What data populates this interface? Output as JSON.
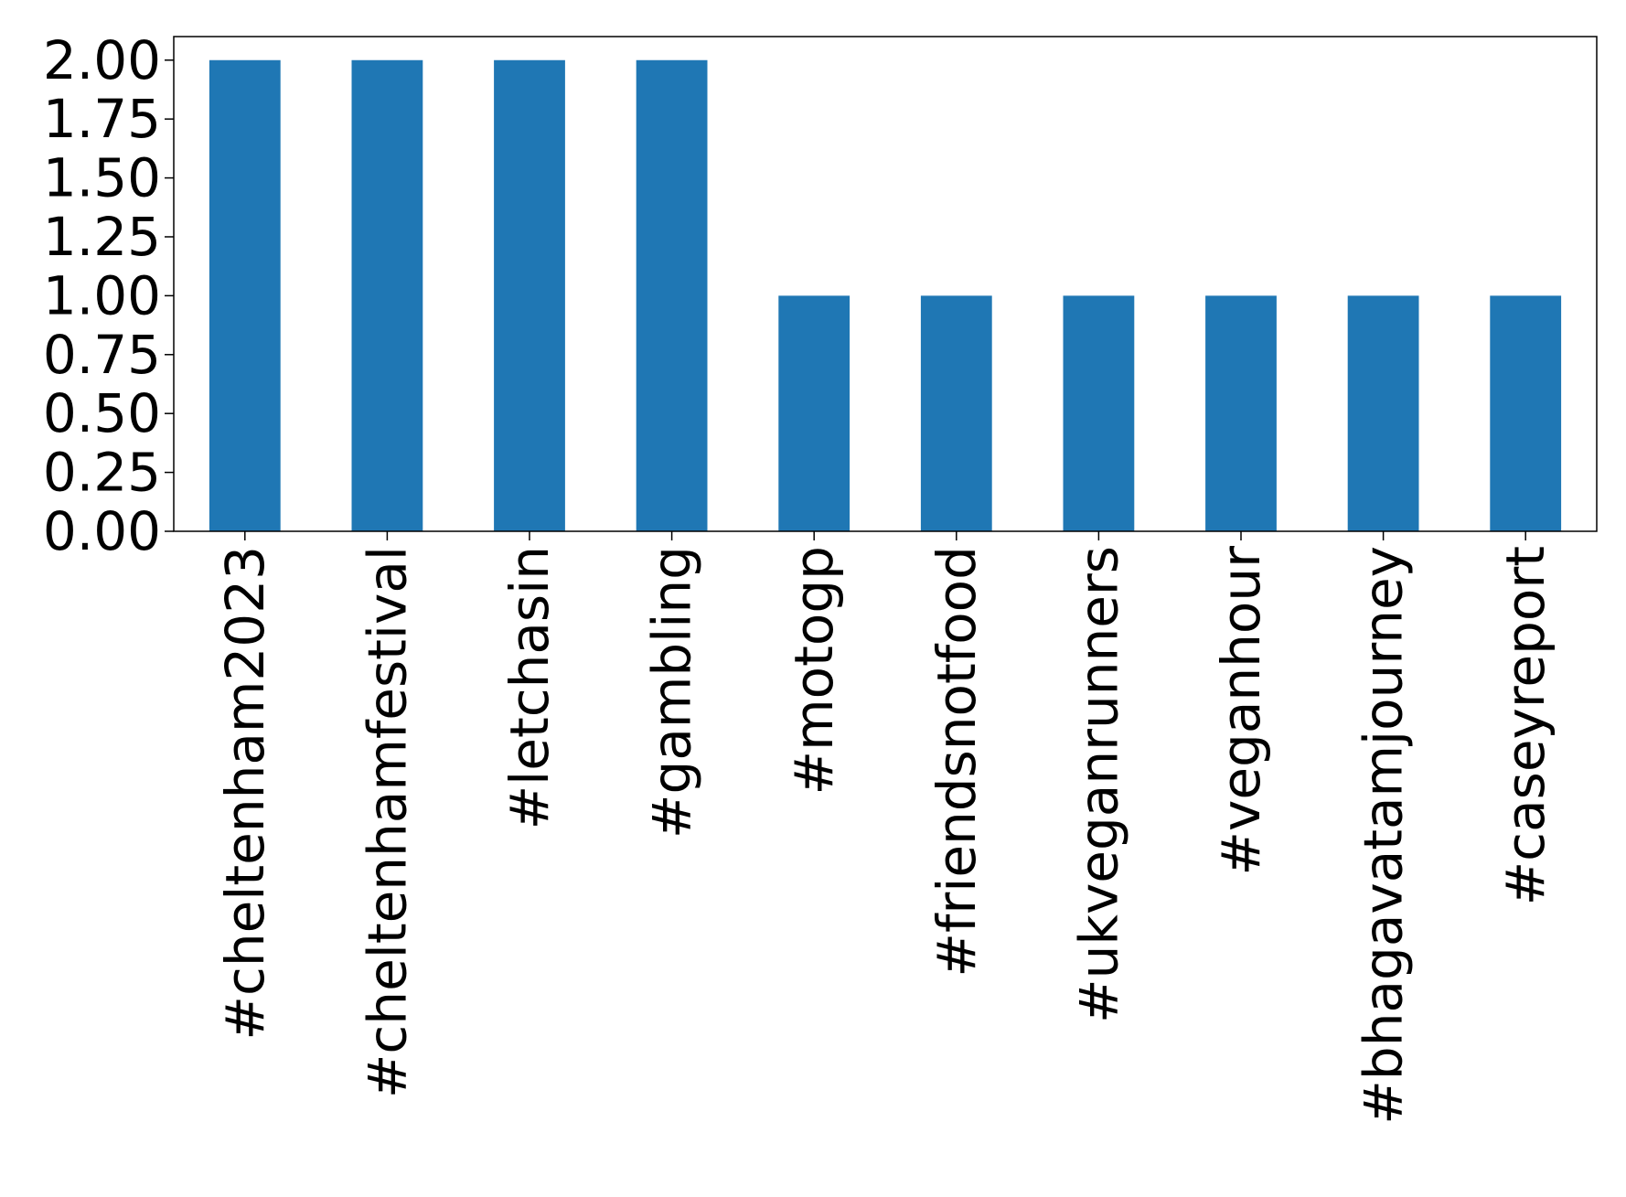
{
  "chart_data": {
    "type": "bar",
    "title": "",
    "xlabel": "",
    "ylabel": "",
    "categories": [
      "#cheltenham2023",
      "#cheltenhamfestival",
      "#letchasin",
      "#gambling",
      "#motogp",
      "#friendsnotfood",
      "#ukveganrunners",
      "#veganhour",
      "#bhagavatamjourney",
      "#caseyreport"
    ],
    "values": [
      2,
      2,
      2,
      2,
      1,
      1,
      1,
      1,
      1,
      1
    ],
    "ylim": [
      0,
      2.1
    ],
    "yticks": [
      "0.00",
      "0.25",
      "0.50",
      "0.75",
      "1.00",
      "1.25",
      "1.50",
      "1.75",
      "2.00"
    ],
    "bar_color": "#1f77b4",
    "grid": false,
    "legend": false
  }
}
